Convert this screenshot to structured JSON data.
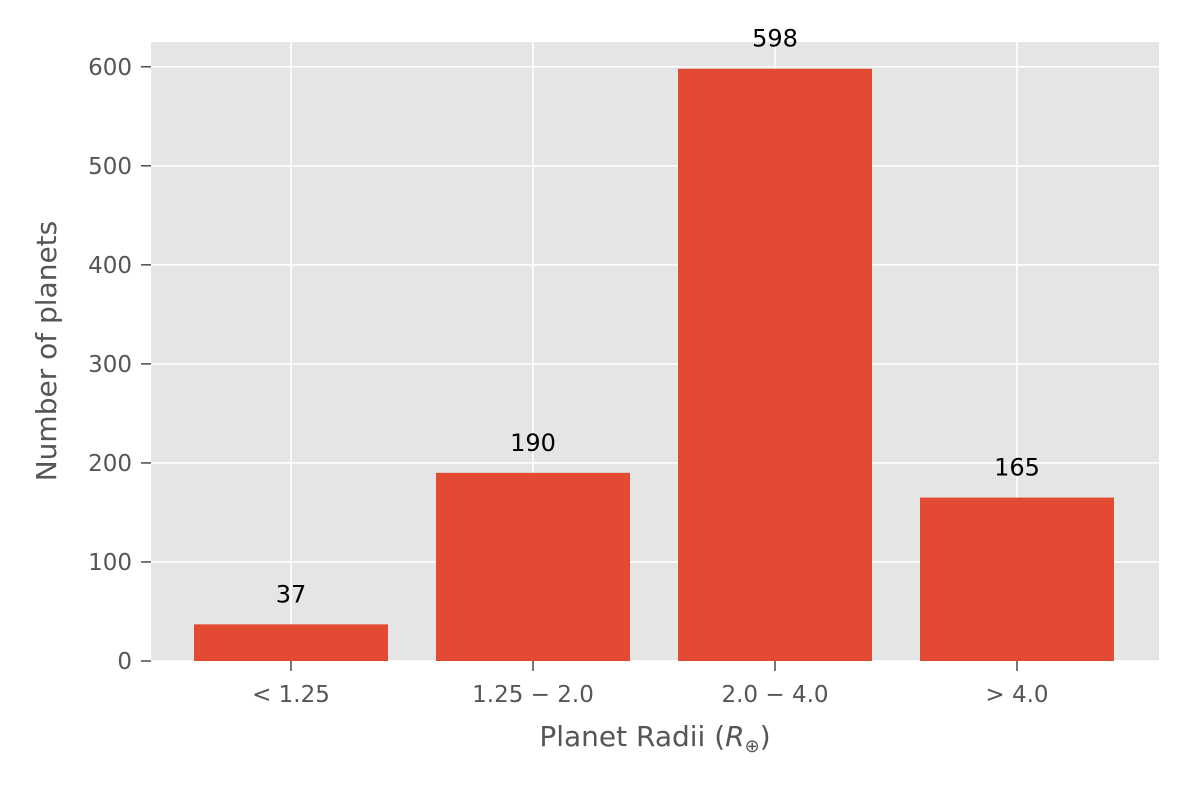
{
  "chart_data": {
    "type": "bar",
    "categories": [
      "< 1.25",
      "1.25 − 2.0",
      "2.0 − 4.0",
      "> 4.0"
    ],
    "values": [
      37,
      190,
      598,
      165
    ],
    "data_labels": [
      "37",
      "190",
      "598",
      "165"
    ],
    "xlabel": "Planet Radii (R⊕)",
    "xlabel_parts": {
      "prefix": "Planet Radii (",
      "symbol": "R",
      "subscript": "⊕",
      "suffix": ")"
    },
    "ylabel": "Number of planets",
    "ylim": [
      0,
      625
    ],
    "yticks": [
      0,
      100,
      200,
      300,
      400,
      500,
      600
    ],
    "grid": true,
    "legend": "none",
    "colors": {
      "bar": "#e24a33",
      "plot_background": "#e5e5e5",
      "grid": "#ffffff",
      "tick_text": "#555555",
      "data_label_text": "#000000"
    }
  }
}
